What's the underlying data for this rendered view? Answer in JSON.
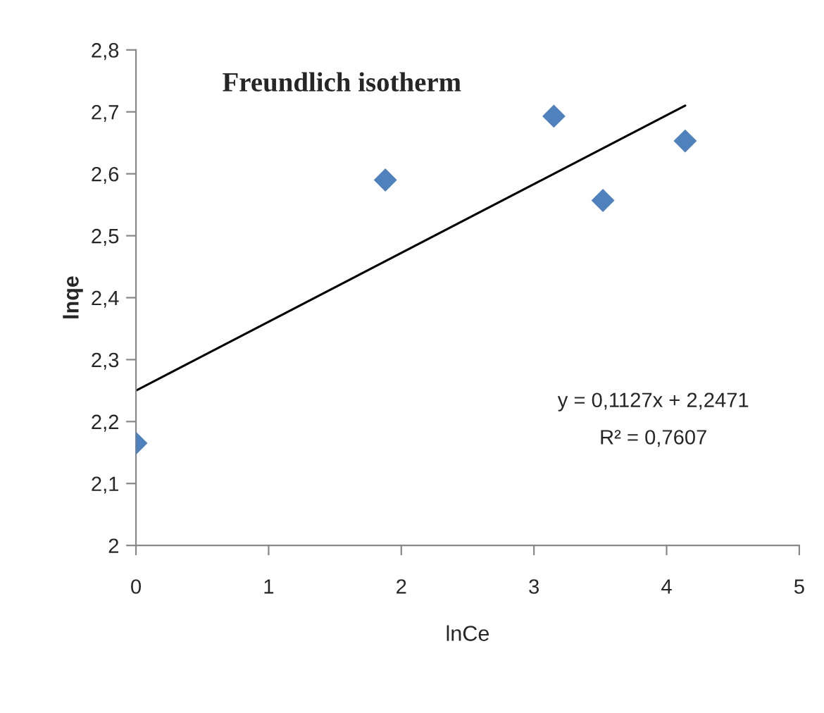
{
  "chart_data": {
    "type": "scatter",
    "title": "Freundlich isotherm",
    "xlabel": "lnCe",
    "ylabel": "lnqe",
    "series": [
      {
        "color": "#4f81bd",
        "marker": "diamond",
        "x": [
          0,
          1.88,
          3.15,
          3.52,
          4.14
        ],
        "values": [
          2.165,
          2.59,
          2.693,
          2.557,
          2.653
        ]
      },
      {
        "type": "line",
        "color": "#000000",
        "marker": "none",
        "line_style": "solid",
        "x": [
          0,
          4.14
        ],
        "values": [
          2.25,
          2.71
        ]
      }
    ],
    "annotations": [
      {
        "text": "y = 0,1127x + 2,2471"
      },
      {
        "text": "R² = 0,7607"
      }
    ],
    "xlim": [
      0,
      5
    ],
    "xticks": [
      0,
      1,
      2,
      3,
      4,
      5
    ],
    "ylim": [
      2,
      2.8
    ],
    "yticks": [
      2,
      {
        "value": 2.1,
        "label": "2,1"
      },
      {
        "value": 2.2,
        "label": "2,2"
      },
      {
        "value": 2.3,
        "label": "2,3"
      },
      {
        "value": 2.4,
        "label": "2,4"
      },
      {
        "value": 2.5,
        "label": "2,5"
      },
      {
        "value": 2.6,
        "label": "2,6"
      },
      {
        "value": 2.7,
        "label": "2,7"
      },
      {
        "value": 2.8,
        "label": "2,8"
      }
    ],
    "grid": false,
    "legend": false
  }
}
